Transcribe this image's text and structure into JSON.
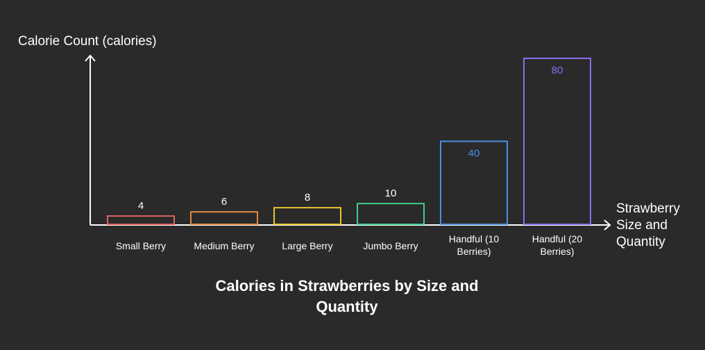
{
  "chart_data": {
    "type": "bar",
    "title": "Calories in Strawberries by Size and Quantity",
    "ylabel": "Calorie Count (calories)",
    "xlabel": "Strawberry Size and Quantity",
    "categories": [
      "Small Berry",
      "Medium Berry",
      "Large Berry",
      "Jumbo Berry",
      "Handful (10 Berries)",
      "Handful (20 Berries)"
    ],
    "values": [
      4,
      6,
      8,
      10,
      40,
      80
    ],
    "colors": [
      "#e0605a",
      "#e8883a",
      "#e6c62e",
      "#3fcf8e",
      "#4a90e2",
      "#8b6cf0"
    ],
    "ylim": [
      0,
      80
    ],
    "grid": false
  }
}
